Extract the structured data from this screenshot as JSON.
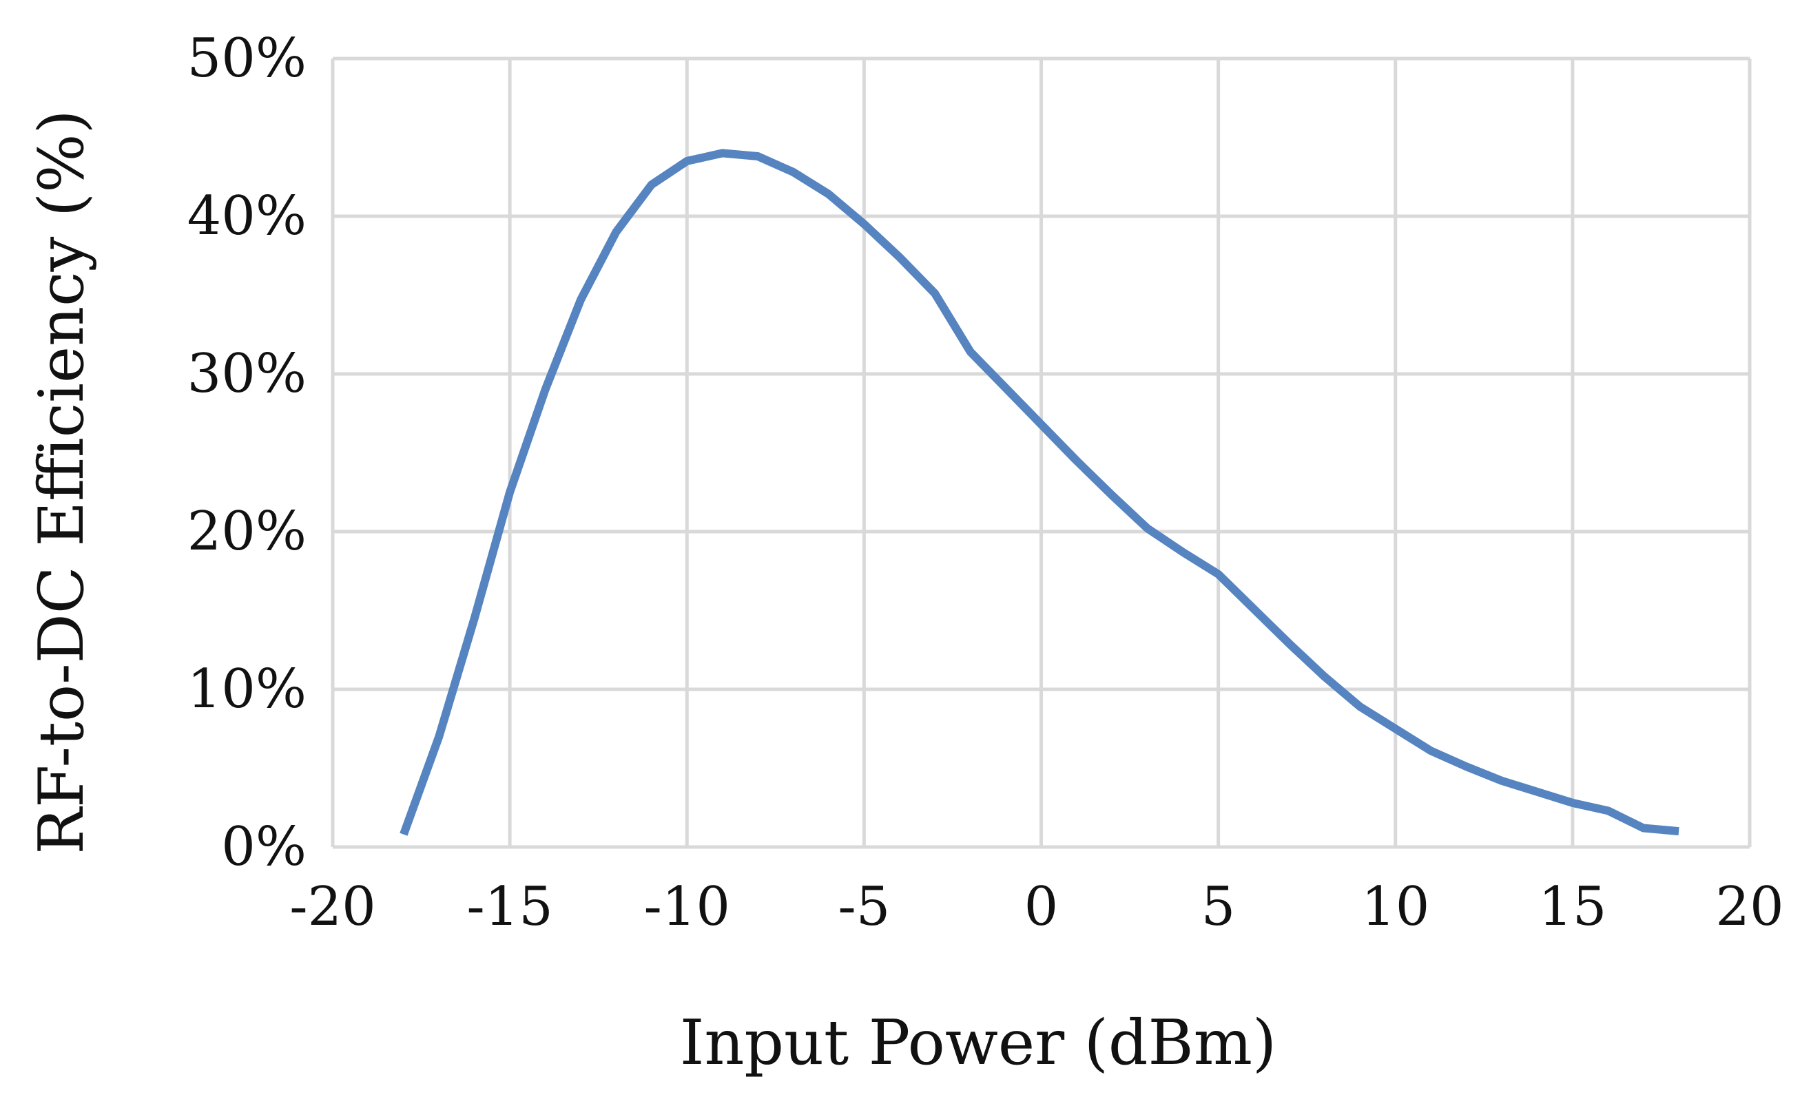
{
  "chart_data": {
    "type": "line",
    "title": "",
    "xlabel": "Input Power (dBm)",
    "ylabel": "RF-to-DC Efficiency (%)",
    "xlim": [
      -20,
      20
    ],
    "ylim": [
      0,
      50
    ],
    "x_ticks": [
      -20,
      -15,
      -10,
      -5,
      0,
      5,
      10,
      15,
      20
    ],
    "x_tick_labels": [
      "-20",
      "-15",
      "-10",
      "-5",
      "0",
      "5",
      "10",
      "15",
      "20"
    ],
    "y_ticks": [
      0,
      10,
      20,
      30,
      40,
      50
    ],
    "y_tick_labels": [
      "0%",
      "10%",
      "20%",
      "30%",
      "40%",
      "50%"
    ],
    "grid": true,
    "legend": "none",
    "series": [
      {
        "color": "#5584c0",
        "x": [
          -18,
          -17,
          -16,
          -15,
          -14,
          -13,
          -12,
          -11,
          -10,
          -9,
          -8,
          -7,
          -6,
          -5,
          -4,
          -3,
          -2,
          -1,
          0,
          1,
          2,
          3,
          4,
          5,
          6,
          7,
          8,
          9,
          10,
          11,
          12,
          13,
          14,
          15,
          16,
          17,
          18
        ],
        "y": [
          0.8,
          7.0,
          14.5,
          22.5,
          29.0,
          34.7,
          39.0,
          42.0,
          43.5,
          44.0,
          43.8,
          42.8,
          41.4,
          39.5,
          37.4,
          35.1,
          31.4,
          29.1,
          26.8,
          24.5,
          22.3,
          20.2,
          18.7,
          17.3,
          15.1,
          12.9,
          10.8,
          8.9,
          7.5,
          6.1,
          5.1,
          4.2,
          3.5,
          2.8,
          2.3,
          1.2,
          1.0
        ]
      }
    ]
  }
}
